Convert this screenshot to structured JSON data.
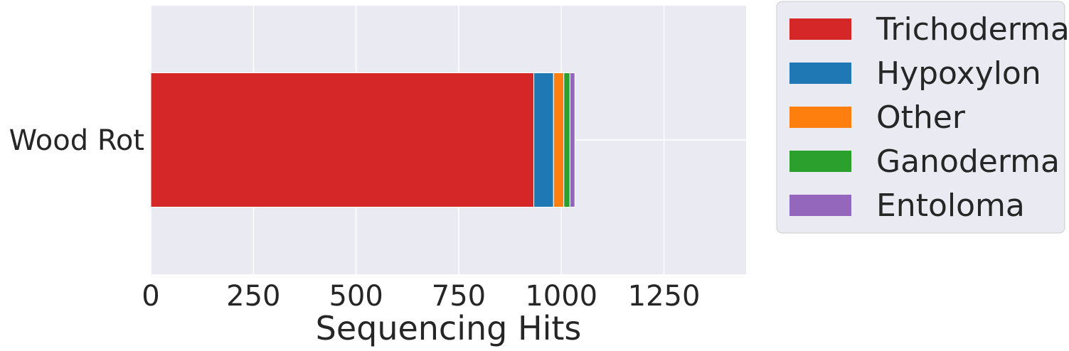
{
  "chart_data": {
    "type": "bar",
    "orientation": "horizontal",
    "stacked": true,
    "categories": [
      "Wood Rot"
    ],
    "series": [
      {
        "name": "Trichoderma",
        "values": [
          933
        ],
        "color": "#d62728"
      },
      {
        "name": "Hypoxylon",
        "values": [
          48
        ],
        "color": "#1f77b4"
      },
      {
        "name": "Other",
        "values": [
          25
        ],
        "color": "#ff7f0e"
      },
      {
        "name": "Ganoderma",
        "values": [
          15
        ],
        "color": "#2ca02c"
      },
      {
        "name": "Entoloma",
        "values": [
          12
        ],
        "color": "#9467bd"
      }
    ],
    "xlabel": "Sequencing Hits",
    "ylabel": "",
    "xlim": [
      0,
      1450
    ],
    "xticks": [
      0,
      250,
      500,
      750,
      1000,
      1250
    ],
    "xtick_labels": [
      "0",
      "250",
      "500",
      "750",
      "1000",
      "1250"
    ],
    "grid": true,
    "background": "#eaeaf2",
    "legend_position": "outside-right-top"
  }
}
